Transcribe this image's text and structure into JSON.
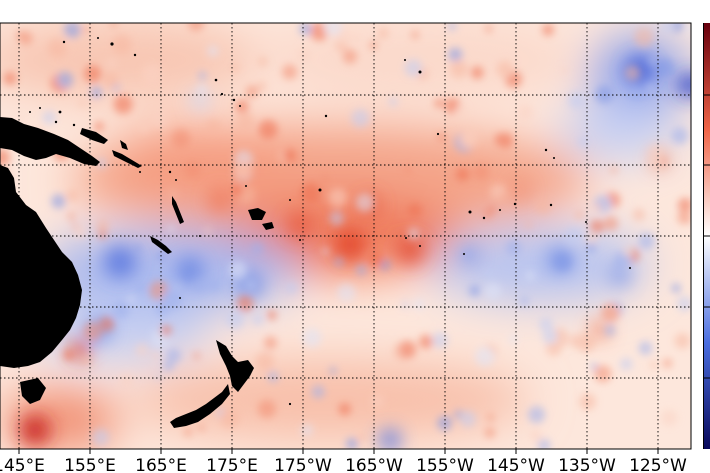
{
  "map": {
    "x_tick_labels": [
      "145°E",
      "155°E",
      "165°E",
      "175°E",
      "175°W",
      "165°W",
      "155°W",
      "145°W",
      "135°W",
      "125°W"
    ],
    "longitude_range": [
      "145°E",
      "125°W"
    ],
    "colormap": {
      "name": "diverging red-white-blue",
      "positive_color": "#d7301f",
      "strong_positive_color": "#b30000",
      "neutral_color": "#ffffff",
      "negative_color": "#3b5bd9",
      "strong_negative_color": "#1f2fb5"
    },
    "land_color": "#000000",
    "gridlines": "dotted",
    "colorbar": "right edge, partially visible"
  }
}
